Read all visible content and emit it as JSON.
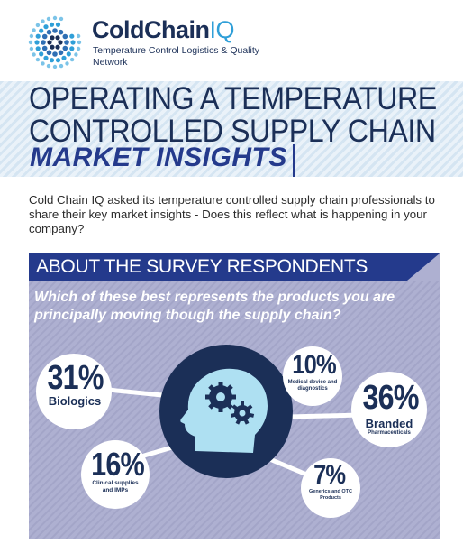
{
  "header": {
    "brand_cold": "ColdChain",
    "brand_iq": "IQ",
    "tagline": "Temperature Control Logistics & Quality Network"
  },
  "title": {
    "line1": "OPERATING A TEMPERATURE",
    "line2": "CONTROLLED SUPPLY CHAIN",
    "line3": "MARKET INSIGHTS"
  },
  "intro": "Cold Chain IQ asked its temperature controlled supply chain professionals to share their key market insights - Does this reflect what is happening in your company?",
  "section": {
    "title": "ABOUT THE SURVEY RESPONDENTS",
    "question": "Which of these best represents the products you are principally moving though the supply chain?"
  },
  "results": [
    {
      "percent": "31%",
      "value": 31,
      "label": "Biologics"
    },
    {
      "percent": "10%",
      "value": 10,
      "label": "Medical device and diagnostics"
    },
    {
      "percent": "36%",
      "value": 36,
      "label": "Branded",
      "sublabel": "Pharmaceuticals"
    },
    {
      "percent": "16%",
      "value": 16,
      "label": "Clinical supplies and IMPs"
    },
    {
      "percent": "7%",
      "value": 7,
      "label": "Generics and OTC Products"
    }
  ],
  "colors": {
    "navy": "#1b2f57",
    "royal_blue": "#243a8c",
    "panel_lavender": "#aeb0d1",
    "sky_blue": "#2f9fd8",
    "head_light_blue": "#aee0f2"
  },
  "icons": {
    "logo": "dotted-sphere-logo",
    "centerpiece": "head-with-gears-icon"
  }
}
